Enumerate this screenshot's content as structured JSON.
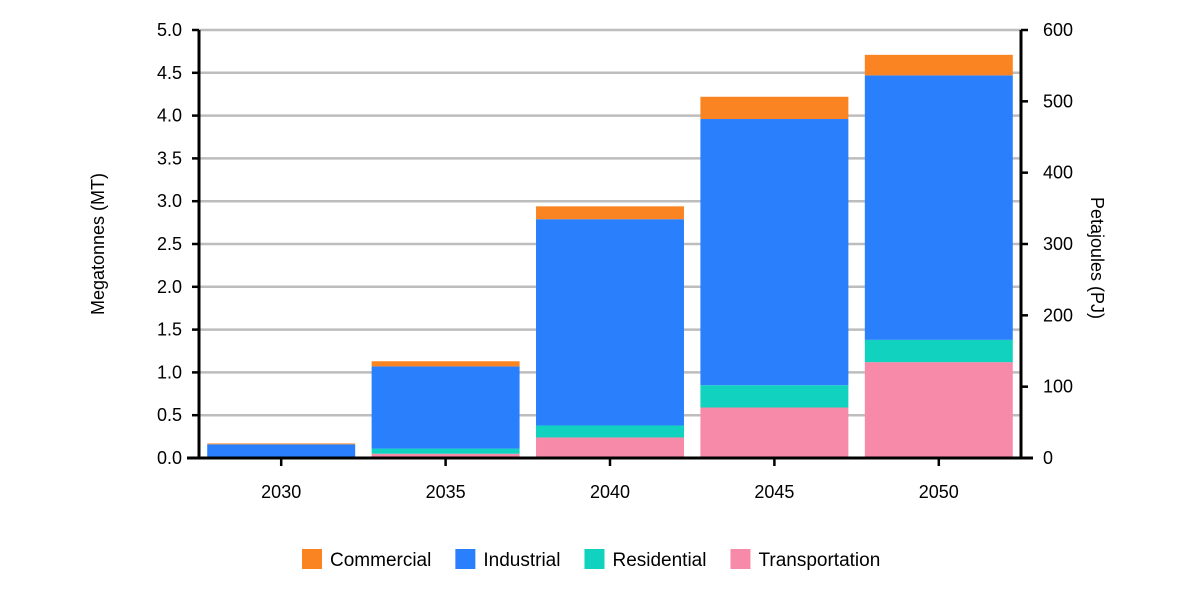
{
  "chart_data": {
    "type": "bar",
    "stacked": true,
    "categories": [
      "2030",
      "2035",
      "2040",
      "2045",
      "2050"
    ],
    "series": [
      {
        "name": "Transportation",
        "color": "#f78aa9",
        "values": [
          0.0,
          0.05,
          0.24,
          0.59,
          1.12
        ]
      },
      {
        "name": "Residential",
        "color": "#10d2be",
        "values": [
          0.0,
          0.06,
          0.14,
          0.26,
          0.26
        ]
      },
      {
        "name": "Industrial",
        "color": "#2a7ffd",
        "values": [
          0.16,
          0.96,
          2.41,
          3.11,
          3.09
        ]
      },
      {
        "name": "Commercial",
        "color": "#fb8422",
        "values": [
          0.01,
          0.06,
          0.15,
          0.26,
          0.24
        ]
      }
    ],
    "legend_order": [
      "Commercial",
      "Industrial",
      "Residential",
      "Transportation"
    ],
    "ylabel": "Megatonnes (MT)",
    "y2label": "Petajoules (PJ)",
    "ylim": [
      0,
      5
    ],
    "yticks": [
      "0.0",
      "0.5",
      "1.0",
      "1.5",
      "2.0",
      "2.5",
      "3.0",
      "3.5",
      "4.0",
      "4.5",
      "5.0"
    ],
    "y2lim": [
      0,
      600
    ],
    "y2ticks": [
      "0",
      "100",
      "200",
      "300",
      "400",
      "500",
      "600"
    ],
    "grid": true,
    "legend_position": "bottom"
  }
}
